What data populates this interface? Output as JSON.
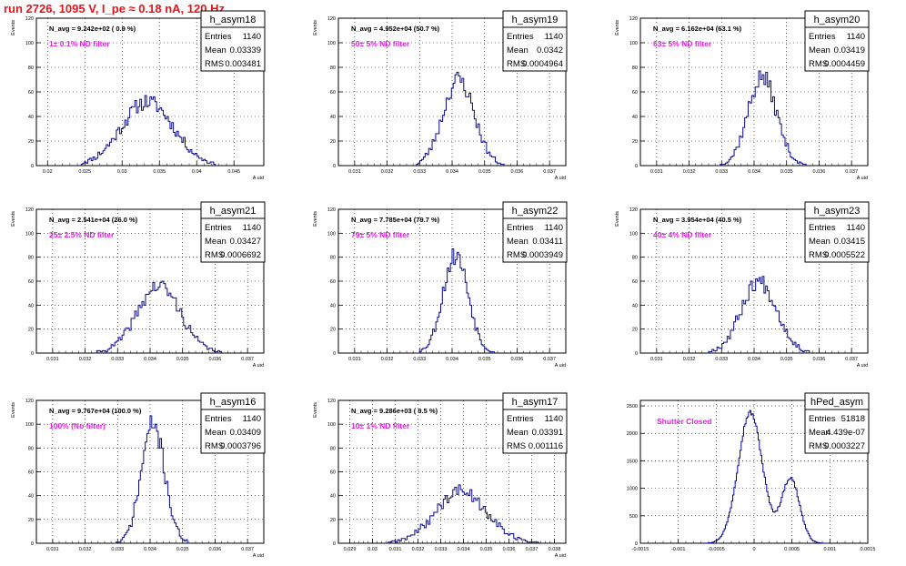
{
  "title": "run 2726,  1095 V, I_pe ≈ 0.18 nA, 120 Hz",
  "colors": {
    "title": "#e8141c",
    "annotation": "#e020e0",
    "histogram": "#0a0a8c",
    "grid": "#000000"
  },
  "stat_labels": {
    "entries": "Entries",
    "mean": "Mean",
    "rms": "RMS"
  },
  "chart_data": [
    {
      "type": "bar",
      "title": "h_asym18",
      "navg": "N_avg = 9.242e+02 ( 0.9 %)",
      "filter": "1± 0.1% ND filter",
      "xlabel": "A_uid",
      "ylabel": "Events",
      "xlim": [
        0.0185,
        0.049
      ],
      "ylim": [
        0,
        120
      ],
      "xticks": [
        "0.02",
        "0.025",
        "0.03",
        "0.035",
        "0.04",
        "0.045"
      ],
      "xtick_values": [
        0.02,
        0.025,
        0.03,
        0.035,
        0.04,
        0.045
      ],
      "yticks": [
        "0",
        "20",
        "40",
        "60",
        "80",
        "100",
        "120"
      ],
      "stats": {
        "entries": "1140",
        "mean": "0.03339",
        "rms": "0.003481"
      },
      "dist": {
        "type": "gauss",
        "peak": 52,
        "mean": 0.03339,
        "sigma": 0.003481,
        "range": [
          0.0245,
          0.0425
        ],
        "nbins": 80,
        "seed": 11
      }
    },
    {
      "type": "bar",
      "title": "h_asym19",
      "navg": "N_avg = 4.952e+04 (50.7 %)",
      "filter": "50± 5% ND filter",
      "xlabel": "A_uid",
      "ylabel": "Events",
      "xlim": [
        0.0305,
        0.0375
      ],
      "ylim": [
        0,
        120
      ],
      "xticks": [
        "0.031",
        "0.032",
        "0.033",
        "0.034",
        "0.035",
        "0.036",
        "0.037"
      ],
      "xtick_values": [
        0.031,
        0.032,
        0.033,
        0.034,
        0.035,
        0.036,
        0.037
      ],
      "yticks": [
        "0",
        "20",
        "40",
        "60",
        "80",
        "100",
        "120"
      ],
      "stats": {
        "entries": "1140",
        "mean": "0.0342",
        "rms": "0.0004964"
      },
      "dist": {
        "type": "gauss",
        "peak": 70,
        "mean": 0.0342,
        "sigma": 0.00048,
        "range": [
          0.0329,
          0.0356
        ],
        "nbins": 50,
        "seed": 23
      }
    },
    {
      "type": "bar",
      "title": "h_asym20",
      "navg": "N_avg = 6.162e+04 (63.1 %)",
      "filter": "63± 5% ND filter",
      "xlabel": "A_uid",
      "ylabel": "Events",
      "xlim": [
        0.0305,
        0.0375
      ],
      "ylim": [
        0,
        120
      ],
      "xticks": [
        "0.031",
        "0.032",
        "0.033",
        "0.034",
        "0.035",
        "0.036",
        "0.037"
      ],
      "xtick_values": [
        0.031,
        0.032,
        0.033,
        0.034,
        0.035,
        0.036,
        0.037
      ],
      "yticks": [
        "0",
        "20",
        "40",
        "60",
        "80",
        "100",
        "120"
      ],
      "stats": {
        "entries": "1140",
        "mean": "0.03419",
        "rms": "0.0004459"
      },
      "dist": {
        "type": "gauss",
        "peak": 72,
        "mean": 0.03425,
        "sigma": 0.00044,
        "range": [
          0.0329,
          0.0356
        ],
        "nbins": 50,
        "seed": 37
      }
    },
    {
      "type": "bar",
      "title": "h_asym21",
      "navg": "N_avg = 2.541e+04 (26.0 %)",
      "filter": "25± 2.5% ND filter",
      "xlabel": "A_uid",
      "ylabel": "Events",
      "xlim": [
        0.0305,
        0.0375
      ],
      "ylim": [
        0,
        120
      ],
      "xticks": [
        "0.031",
        "0.032",
        "0.033",
        "0.034",
        "0.035",
        "0.036",
        "0.037"
      ],
      "xtick_values": [
        0.031,
        0.032,
        0.033,
        0.034,
        0.035,
        0.036,
        0.037
      ],
      "yticks": [
        "0",
        "20",
        "40",
        "60",
        "80",
        "100",
        "120"
      ],
      "stats": {
        "entries": "1140",
        "mean": "0.03427",
        "rms": "0.0006692"
      },
      "dist": {
        "type": "gauss",
        "peak": 56,
        "mean": 0.03427,
        "sigma": 0.00066,
        "range": [
          0.0323,
          0.0362
        ],
        "nbins": 70,
        "seed": 41
      }
    },
    {
      "type": "bar",
      "title": "h_asym22",
      "navg": "N_avg = 7.785e+04 (79.7 %)",
      "filter": "79± 5% ND filter",
      "xlabel": "A_uid",
      "ylabel": "Events",
      "xlim": [
        0.0305,
        0.0375
      ],
      "ylim": [
        0,
        120
      ],
      "xticks": [
        "0.031",
        "0.032",
        "0.033",
        "0.034",
        "0.035",
        "0.036",
        "0.037"
      ],
      "xtick_values": [
        0.031,
        0.032,
        0.033,
        0.034,
        0.035,
        0.036,
        0.037
      ],
      "yticks": [
        "0",
        "20",
        "40",
        "60",
        "80",
        "100",
        "120"
      ],
      "stats": {
        "entries": "1140",
        "mean": "0.03411",
        "rms": "0.0003949"
      },
      "dist": {
        "type": "gauss",
        "peak": 82,
        "mean": 0.03411,
        "sigma": 0.00039,
        "range": [
          0.0329,
          0.0353
        ],
        "nbins": 48,
        "seed": 53
      }
    },
    {
      "type": "bar",
      "title": "h_asym23",
      "navg": "N_avg = 3.954e+04 (40.5 %)",
      "filter": "40± 4% ND filter",
      "xlabel": "A_uid",
      "ylabel": "Events",
      "xlim": [
        0.0305,
        0.0375
      ],
      "ylim": [
        0,
        120
      ],
      "xticks": [
        "0.031",
        "0.032",
        "0.033",
        "0.034",
        "0.035",
        "0.036",
        "0.037"
      ],
      "xtick_values": [
        0.031,
        0.032,
        0.033,
        0.034,
        0.035,
        0.036,
        0.037
      ],
      "yticks": [
        "0",
        "20",
        "40",
        "60",
        "80",
        "100",
        "120"
      ],
      "stats": {
        "entries": "1140",
        "mean": "0.03415",
        "rms": "0.0005522"
      },
      "dist": {
        "type": "gauss",
        "peak": 60,
        "mean": 0.03415,
        "sigma": 0.00055,
        "range": [
          0.0326,
          0.0357
        ],
        "nbins": 60,
        "seed": 67
      }
    },
    {
      "type": "bar",
      "title": "h_asym16",
      "navg": "N_avg = 9.767e+04 (100.0 %)",
      "filter": "100% (No filter)",
      "xlabel": "A_uid",
      "ylabel": "Events",
      "xlim": [
        0.0305,
        0.0375
      ],
      "ylim": [
        0,
        120
      ],
      "xticks": [
        "0.031",
        "0.032",
        "0.033",
        "0.034",
        "0.035",
        "0.036",
        "0.037"
      ],
      "xtick_values": [
        0.031,
        0.032,
        0.033,
        0.034,
        0.035,
        0.036,
        0.037
      ],
      "yticks": [
        "0",
        "20",
        "40",
        "60",
        "80",
        "100",
        "120"
      ],
      "stats": {
        "entries": "1140",
        "mean": "0.03409",
        "rms": "0.0003796"
      },
      "dist": {
        "type": "gauss",
        "peak": 100,
        "mean": 0.03409,
        "sigma": 0.00036,
        "range": [
          0.0329,
          0.0352
        ],
        "nbins": 46,
        "seed": 71
      }
    },
    {
      "type": "bar",
      "title": "h_asym17",
      "navg": "N_avg = 9.286e+03 ( 9.5 %)",
      "filter": "10± 1% ND filter",
      "xlabel": "A_uid",
      "ylabel": "Events",
      "xlim": [
        0.0285,
        0.0385
      ],
      "ylim": [
        0,
        120
      ],
      "xticks": [
        "0.029",
        "0.03",
        "0.031",
        "0.032",
        "0.033",
        "0.034",
        "0.035",
        "0.036",
        "0.037",
        "0.038"
      ],
      "xtick_values": [
        0.029,
        0.03,
        0.031,
        0.032,
        0.033,
        0.034,
        0.035,
        0.036,
        0.037,
        0.038
      ],
      "yticks": [
        "0",
        "20",
        "40",
        "60",
        "80",
        "100",
        "120"
      ],
      "stats": {
        "entries": "1140",
        "mean": "0.03391",
        "rms": "0.001116"
      },
      "dist": {
        "type": "gauss",
        "peak": 44,
        "mean": 0.03391,
        "sigma": 0.00112,
        "range": [
          0.0306,
          0.0373
        ],
        "nbins": 80,
        "seed": 89
      }
    },
    {
      "type": "bar",
      "title": "hPed_asym",
      "navg": "",
      "filter": "Shutter Closed",
      "xlabel": "",
      "ylabel": "",
      "xlim": [
        -0.0015,
        0.0015
      ],
      "ylim": [
        0,
        2600
      ],
      "xticks": [
        "-0.0015",
        "-0.001",
        "-0.0005",
        "0",
        "0.0005",
        "0.001",
        "0.0015"
      ],
      "xtick_values": [
        -0.0015,
        -0.001,
        -0.0005,
        0,
        0.0005,
        0.001,
        0.0015
      ],
      "yticks": [
        "0",
        "500",
        "1000",
        "1500",
        "2000",
        "2500"
      ],
      "stats": {
        "entries": "51818",
        "mean": "4.439e-07",
        "rms": "0.0003227"
      },
      "dist": {
        "type": "bimodal",
        "peaks": [
          {
            "peak": 2380,
            "mean": -5e-05,
            "sigma": 0.00016
          },
          {
            "peak": 1180,
            "mean": 0.00048,
            "sigma": 0.00012
          }
        ],
        "range": [
          -0.00065,
          0.00095
        ],
        "nbins": 100,
        "seed": 97
      }
    }
  ]
}
